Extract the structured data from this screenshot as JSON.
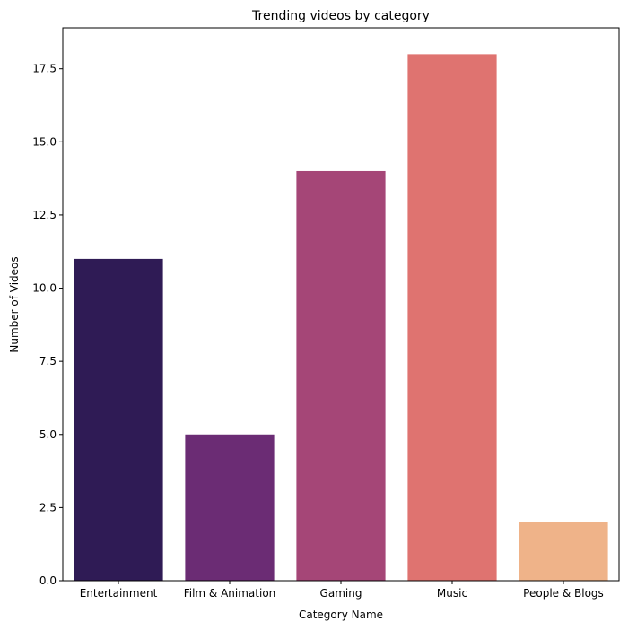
{
  "chart_data": {
    "type": "bar",
    "title": "Trending videos by category",
    "xlabel": "Category Name",
    "ylabel": "Number of Videos",
    "categories": [
      "Entertainment",
      "Film & Animation",
      "Gaming",
      "Music",
      "People & Blogs"
    ],
    "values": [
      11,
      5,
      14,
      18,
      2
    ],
    "colors": [
      "#2f1b55",
      "#6b2c74",
      "#a54677",
      "#df7370",
      "#efb389"
    ],
    "ylim": [
      0,
      18.9
    ],
    "yticks": [
      0.0,
      2.5,
      5.0,
      7.5,
      10.0,
      12.5,
      15.0,
      17.5
    ],
    "ytick_labels": [
      "0.0",
      "2.5",
      "5.0",
      "7.5",
      "10.0",
      "12.5",
      "15.0",
      "17.5"
    ],
    "grid": false,
    "legend": "none"
  }
}
